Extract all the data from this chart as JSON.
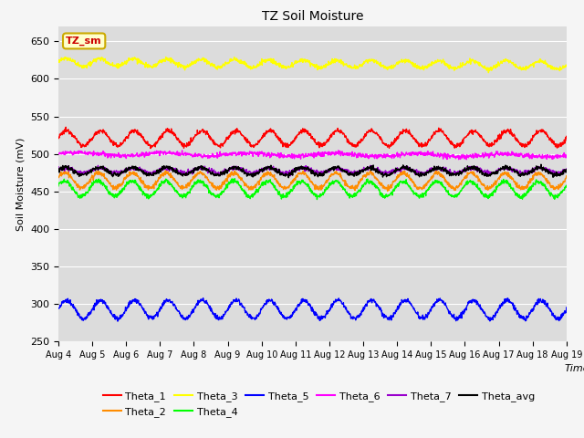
{
  "title": "TZ Soil Moisture",
  "xlabel": "Time",
  "ylabel": "Soil Moisture (mV)",
  "ylim": [
    250,
    670
  ],
  "yticks": [
    250,
    300,
    350,
    400,
    450,
    500,
    550,
    600,
    650
  ],
  "plot_bg": "#dcdcdc",
  "fig_bg": "#f5f5f5",
  "n_points": 1500,
  "days": 15,
  "series_order": [
    "Theta_1",
    "Theta_2",
    "Theta_3",
    "Theta_4",
    "Theta_5",
    "Theta_6",
    "Theta_7",
    "Theta_avg"
  ],
  "series": {
    "Theta_1": {
      "color": "#ff0000",
      "mean": 521,
      "amp": 10,
      "freq": 1.0,
      "phase": 0.0,
      "trend": -0.0
    },
    "Theta_2": {
      "color": "#ff8c00",
      "mean": 465,
      "amp": 10,
      "freq": 1.0,
      "phase": 0.4,
      "trend": -0.1
    },
    "Theta_3": {
      "color": "#ffff00",
      "mean": 622,
      "amp": 5,
      "freq": 1.0,
      "phase": 0.2,
      "trend": -0.4
    },
    "Theta_4": {
      "color": "#00ff00",
      "mean": 454,
      "amp": 10,
      "freq": 1.0,
      "phase": 0.5,
      "trend": -0.1
    },
    "Theta_5": {
      "color": "#0000ff",
      "mean": 293,
      "amp": 12,
      "freq": 1.0,
      "phase": 0.0,
      "trend": 0.0
    },
    "Theta_6": {
      "color": "#ff00ff",
      "mean": 500,
      "amp": 2,
      "freq": 0.4,
      "phase": 0.0,
      "trend": -0.2
    },
    "Theta_7": {
      "color": "#9900cc",
      "mean": 478,
      "amp": 3,
      "freq": 1.0,
      "phase": 0.2,
      "trend": 0.0
    },
    "Theta_avg": {
      "color": "#000000",
      "mean": 477,
      "amp": 5,
      "freq": 1.0,
      "phase": 0.3,
      "trend": 0.0
    }
  },
  "annotation_text": "TZ_sm",
  "annotation_color": "#cc0000",
  "annotation_bg": "#ffffcc",
  "annotation_edge": "#ccaa00",
  "xtick_labels": [
    "Aug 4",
    "Aug 5",
    "Aug 6",
    "Aug 7",
    "Aug 8",
    "Aug 9",
    "Aug 10",
    "Aug 11",
    "Aug 12",
    "Aug 13",
    "Aug 14",
    "Aug 15",
    "Aug 16",
    "Aug 17",
    "Aug 18",
    "Aug 19"
  ],
  "legend_row1": [
    "Theta_1",
    "Theta_2",
    "Theta_3",
    "Theta_4",
    "Theta_5",
    "Theta_6"
  ],
  "legend_row1_colors": [
    "#ff0000",
    "#ff8c00",
    "#ffff00",
    "#00ff00",
    "#0000ff",
    "#ff00ff"
  ],
  "legend_row2": [
    "Theta_7",
    "Theta_avg"
  ],
  "legend_row2_colors": [
    "#9900cc",
    "#000000"
  ]
}
